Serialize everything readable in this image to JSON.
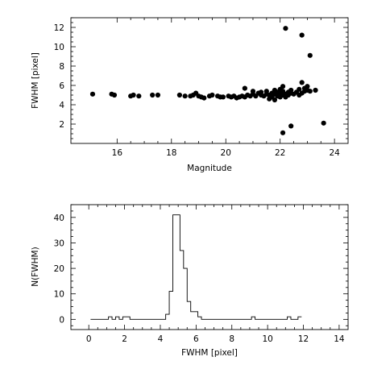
{
  "chart_data": [
    {
      "type": "scatter",
      "xlabel": "Magnitude",
      "ylabel": "FWHM [pixel]",
      "xlim": [
        14.3,
        24.5
      ],
      "ylim": [
        0,
        13
      ],
      "xticks": [
        16,
        18,
        20,
        22,
        24
      ],
      "yticks": [
        2,
        4,
        6,
        8,
        10,
        12
      ],
      "grid": false,
      "points": [
        [
          15.1,
          5.1
        ],
        [
          15.8,
          5.1
        ],
        [
          15.9,
          5.0
        ],
        [
          16.5,
          4.9
        ],
        [
          16.6,
          5.0
        ],
        [
          16.8,
          4.9
        ],
        [
          17.3,
          5.0
        ],
        [
          17.5,
          5.0
        ],
        [
          18.3,
          5.0
        ],
        [
          18.5,
          4.9
        ],
        [
          18.7,
          4.9
        ],
        [
          18.8,
          5.0
        ],
        [
          18.9,
          5.2
        ],
        [
          19.0,
          4.9
        ],
        [
          19.1,
          4.8
        ],
        [
          19.2,
          4.7
        ],
        [
          19.4,
          4.9
        ],
        [
          19.5,
          5.0
        ],
        [
          19.7,
          4.9
        ],
        [
          19.8,
          4.8
        ],
        [
          19.9,
          4.8
        ],
        [
          20.1,
          4.9
        ],
        [
          20.2,
          4.8
        ],
        [
          20.3,
          4.9
        ],
        [
          20.4,
          4.7
        ],
        [
          20.5,
          4.8
        ],
        [
          20.6,
          4.9
        ],
        [
          20.7,
          4.8
        ],
        [
          20.7,
          5.7
        ],
        [
          20.8,
          5.0
        ],
        [
          20.9,
          4.9
        ],
        [
          21.0,
          5.1
        ],
        [
          21.0,
          5.4
        ],
        [
          21.1,
          4.9
        ],
        [
          21.2,
          5.2
        ],
        [
          21.3,
          5.0
        ],
        [
          21.3,
          5.3
        ],
        [
          21.4,
          4.9
        ],
        [
          21.5,
          5.1
        ],
        [
          21.5,
          5.4
        ],
        [
          21.6,
          5.0
        ],
        [
          21.6,
          4.6
        ],
        [
          21.7,
          5.2
        ],
        [
          21.7,
          4.8
        ],
        [
          21.8,
          5.1
        ],
        [
          21.8,
          5.5
        ],
        [
          21.8,
          4.5
        ],
        [
          21.9,
          4.9
        ],
        [
          21.9,
          5.3
        ],
        [
          22.0,
          5.2
        ],
        [
          22.0,
          5.6
        ],
        [
          22.0,
          4.8
        ],
        [
          22.1,
          5.0
        ],
        [
          22.1,
          5.9
        ],
        [
          22.1,
          5.4
        ],
        [
          22.2,
          5.1
        ],
        [
          22.2,
          4.8
        ],
        [
          22.3,
          5.3
        ],
        [
          22.3,
          5.0
        ],
        [
          22.4,
          5.2
        ],
        [
          22.4,
          5.5
        ],
        [
          22.5,
          5.1
        ],
        [
          22.6,
          5.3
        ],
        [
          22.7,
          5.0
        ],
        [
          22.7,
          5.6
        ],
        [
          22.8,
          5.2
        ],
        [
          22.8,
          6.3
        ],
        [
          22.9,
          5.4
        ],
        [
          22.9,
          5.7
        ],
        [
          23.0,
          5.5
        ],
        [
          23.0,
          5.9
        ],
        [
          23.1,
          5.4
        ],
        [
          23.3,
          5.5
        ],
        [
          22.1,
          1.1
        ],
        [
          22.4,
          1.8
        ],
        [
          23.6,
          2.1
        ],
        [
          22.2,
          11.9
        ],
        [
          22.8,
          11.2
        ],
        [
          23.1,
          9.1
        ]
      ]
    },
    {
      "type": "histogram",
      "xlabel": "FWHM [pixel]",
      "ylabel": "N(FWHM)",
      "xlim": [
        -1,
        14.5
      ],
      "ylim": [
        -4,
        45
      ],
      "xticks": [
        0,
        2,
        4,
        6,
        8,
        10,
        12,
        14
      ],
      "yticks": [
        0,
        10,
        20,
        30,
        40
      ],
      "grid": false,
      "bin_width": 0.2,
      "bins": [
        [
          0.2,
          0
        ],
        [
          0.4,
          0
        ],
        [
          0.6,
          0
        ],
        [
          0.8,
          0
        ],
        [
          1.0,
          0
        ],
        [
          1.2,
          1
        ],
        [
          1.4,
          0
        ],
        [
          1.6,
          1
        ],
        [
          1.8,
          0
        ],
        [
          2.0,
          1
        ],
        [
          2.2,
          1
        ],
        [
          2.4,
          0
        ],
        [
          2.6,
          0
        ],
        [
          2.8,
          0
        ],
        [
          3.0,
          0
        ],
        [
          3.2,
          0
        ],
        [
          3.4,
          0
        ],
        [
          3.6,
          0
        ],
        [
          3.8,
          0
        ],
        [
          4.0,
          0
        ],
        [
          4.2,
          0
        ],
        [
          4.4,
          2
        ],
        [
          4.6,
          11
        ],
        [
          4.8,
          41
        ],
        [
          5.0,
          41
        ],
        [
          5.2,
          27
        ],
        [
          5.4,
          20
        ],
        [
          5.6,
          7
        ],
        [
          5.8,
          3
        ],
        [
          6.0,
          3
        ],
        [
          6.2,
          1
        ],
        [
          6.4,
          0
        ],
        [
          6.6,
          0
        ],
        [
          6.8,
          0
        ],
        [
          7.0,
          0
        ],
        [
          7.2,
          0
        ],
        [
          7.4,
          0
        ],
        [
          7.6,
          0
        ],
        [
          7.8,
          0
        ],
        [
          8.0,
          0
        ],
        [
          8.2,
          0
        ],
        [
          8.4,
          0
        ],
        [
          8.6,
          0
        ],
        [
          8.8,
          0
        ],
        [
          9.0,
          0
        ],
        [
          9.2,
          1
        ],
        [
          9.4,
          0
        ],
        [
          9.6,
          0
        ],
        [
          9.8,
          0
        ],
        [
          10.0,
          0
        ],
        [
          10.2,
          0
        ],
        [
          10.4,
          0
        ],
        [
          10.6,
          0
        ],
        [
          10.8,
          0
        ],
        [
          11.0,
          0
        ],
        [
          11.2,
          1
        ],
        [
          11.4,
          0
        ],
        [
          11.6,
          0
        ],
        [
          11.8,
          1
        ]
      ]
    }
  ]
}
